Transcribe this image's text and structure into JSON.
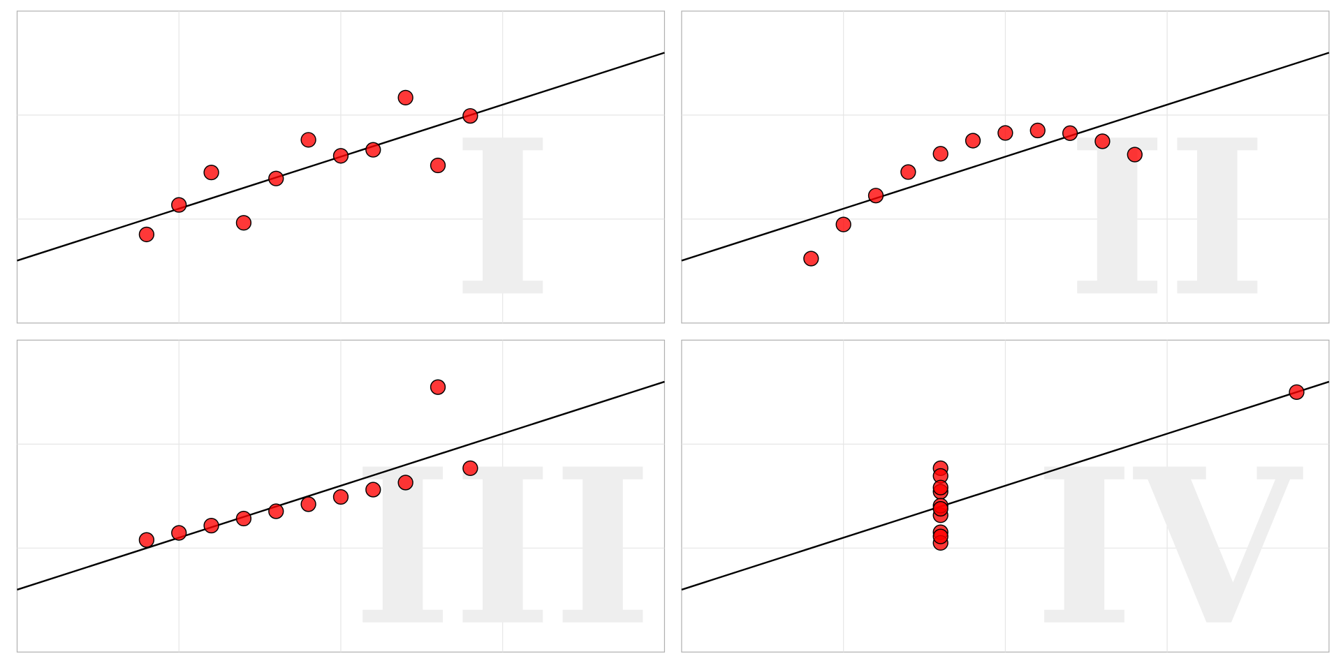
{
  "chart_data": [
    {
      "type": "scatter",
      "watermark": "I",
      "xlim": [
        0,
        20
      ],
      "ylim": [
        0,
        15
      ],
      "grid": true,
      "x": [
        10,
        8,
        13,
        9,
        11,
        14,
        6,
        4,
        12,
        7,
        5
      ],
      "y": [
        8.04,
        6.95,
        7.58,
        8.81,
        8.33,
        9.96,
        7.24,
        4.26,
        10.84,
        4.82,
        5.68
      ],
      "fit_line": {
        "intercept": 3,
        "slope": 0.5
      }
    },
    {
      "type": "scatter",
      "watermark": "II",
      "xlim": [
        0,
        20
      ],
      "ylim": [
        0,
        15
      ],
      "grid": true,
      "x": [
        10,
        8,
        13,
        9,
        11,
        14,
        6,
        4,
        12,
        7,
        5
      ],
      "y": [
        9.14,
        8.14,
        8.74,
        8.77,
        9.26,
        8.1,
        6.13,
        3.1,
        9.13,
        7.26,
        4.74
      ],
      "fit_line": {
        "intercept": 3,
        "slope": 0.5
      }
    },
    {
      "type": "scatter",
      "watermark": "III",
      "xlim": [
        0,
        20
      ],
      "ylim": [
        0,
        15
      ],
      "grid": true,
      "x": [
        10,
        8,
        13,
        9,
        11,
        14,
        6,
        4,
        12,
        7,
        5
      ],
      "y": [
        7.46,
        6.77,
        12.74,
        7.11,
        7.81,
        8.84,
        6.08,
        5.39,
        8.15,
        6.42,
        5.73
      ],
      "fit_line": {
        "intercept": 3,
        "slope": 0.5
      }
    },
    {
      "type": "scatter",
      "watermark": "IV",
      "xlim": [
        0,
        20
      ],
      "ylim": [
        0,
        15
      ],
      "grid": true,
      "x": [
        8,
        8,
        8,
        8,
        8,
        8,
        8,
        19,
        8,
        8,
        8
      ],
      "y": [
        6.58,
        5.76,
        7.71,
        8.84,
        8.47,
        7.04,
        5.25,
        12.5,
        5.56,
        7.91,
        6.89
      ],
      "fit_line": {
        "intercept": 3,
        "slope": 0.5
      }
    }
  ],
  "colors": {
    "points": "#ff0000",
    "line": "#000000",
    "watermark": "#eeeeee",
    "grid": "#e6e6e6"
  }
}
